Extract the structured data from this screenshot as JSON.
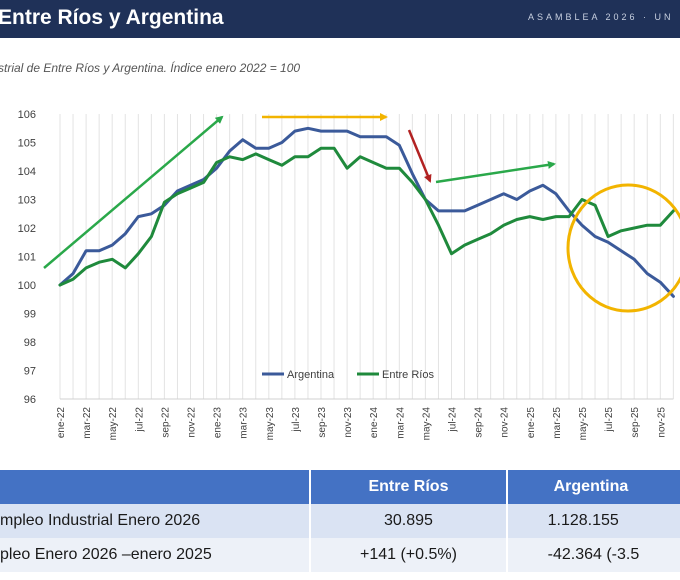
{
  "header": {
    "title": "Entre Ríos y Argentina",
    "right_text": "ASAMBLEA 2026 · UN"
  },
  "subtitle": "strial de Entre Ríos y Argentina. Índice enero 2022 = 100",
  "colors": {
    "header_bg": "#1f3158",
    "argentina": "#3b5a9a",
    "entre_rios": "#1f8a3c",
    "arrow_green": "#2aa84a",
    "arrow_gold": "#f2b400",
    "arrow_red": "#b22222",
    "circle": "#f2b400",
    "table_head": "#4472c4"
  },
  "chart_data": {
    "type": "line",
    "ylim": [
      96,
      106
    ],
    "yticks": [
      "96",
      "97",
      "98",
      "99",
      "100",
      "101",
      "102",
      "103",
      "104",
      "105",
      "106"
    ],
    "x_tick_labels": [
      "ene-22",
      "mar-22",
      "may-22",
      "jul-22",
      "sep-22",
      "nov-22",
      "ene-23",
      "mar-23",
      "may-23",
      "jul-23",
      "sep-23",
      "nov-23",
      "ene-24",
      "mar-24",
      "may-24",
      "jul-24",
      "sep-24",
      "nov-24",
      "ene-25",
      "mar-25",
      "may-25",
      "jul-25",
      "sep-25",
      "nov-25"
    ],
    "series": [
      {
        "name": "Argentina",
        "values": [
          100.0,
          100.4,
          101.2,
          101.2,
          101.4,
          101.8,
          102.4,
          102.5,
          102.8,
          103.3,
          103.5,
          103.7,
          104.1,
          104.7,
          105.1,
          104.8,
          104.8,
          105.0,
          105.4,
          105.5,
          105.4,
          105.4,
          105.4,
          105.2,
          105.2,
          105.2,
          104.9,
          103.9,
          103.0,
          102.6,
          102.6,
          102.6,
          102.8,
          103.0,
          103.2,
          103.0,
          103.3,
          103.5,
          103.2,
          102.6,
          102.1,
          101.7,
          101.5,
          101.2,
          100.9,
          100.4,
          100.1,
          99.6
        ]
      },
      {
        "name": "Entre Ríos",
        "values": [
          100.0,
          100.2,
          100.6,
          100.8,
          100.9,
          100.6,
          101.1,
          101.7,
          102.9,
          103.2,
          103.4,
          103.6,
          104.3,
          104.5,
          104.4,
          104.6,
          104.4,
          104.2,
          104.5,
          104.5,
          104.8,
          104.8,
          104.1,
          104.5,
          104.3,
          104.1,
          104.1,
          103.6,
          103.0,
          102.1,
          101.1,
          101.4,
          101.6,
          101.8,
          102.1,
          102.3,
          102.4,
          102.3,
          102.4,
          102.4,
          103.0,
          102.8,
          101.7,
          101.9,
          102.0,
          102.1,
          102.1,
          102.6
        ]
      }
    ],
    "legend": "bottom-center",
    "grid": true
  },
  "table": {
    "headers": [
      "",
      "Entre Ríos",
      "Argentina"
    ],
    "rows": [
      [
        "mpleo Industrial Enero 2026",
        "30.895",
        "1.128.155"
      ],
      [
        "pleo Enero 2026 –enero 2025",
        "+141  (+0.5%)",
        "-42.364  (-3.5"
      ]
    ]
  }
}
